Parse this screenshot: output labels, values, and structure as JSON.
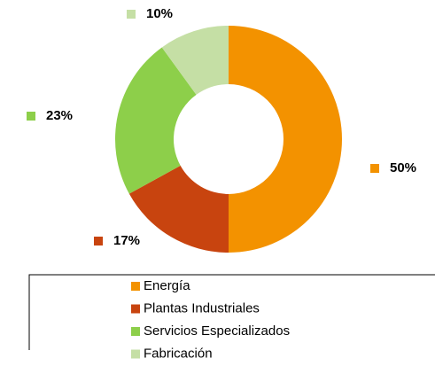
{
  "chart_data": {
    "type": "donut",
    "categories": [
      "Energía",
      "Plantas Industriales",
      "Servicios Especializados",
      "Fabricación"
    ],
    "values": [
      50,
      17,
      23,
      10
    ],
    "value_labels": [
      "50%",
      "17%",
      "23%",
      "10%"
    ],
    "colors": [
      "#f39200",
      "#c8440f",
      "#8dcf4a",
      "#c5dfa5"
    ],
    "legend": "bottom"
  }
}
